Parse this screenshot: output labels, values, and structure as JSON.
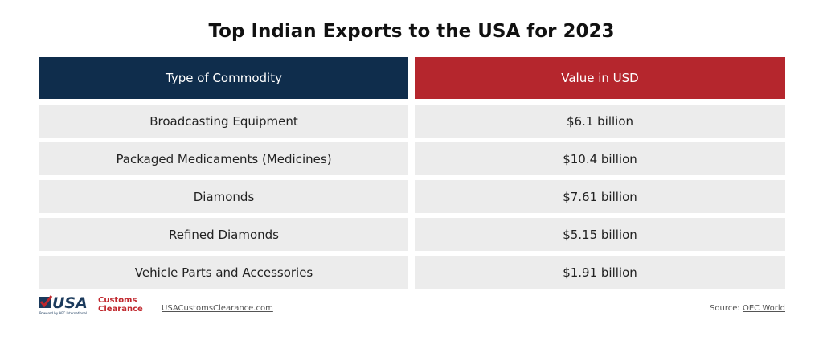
{
  "header": {
    "title": "Top Indian Exports to the USA for 2023"
  },
  "table": {
    "columns": [
      "Type of Commodity",
      "Value in USD"
    ],
    "rows": [
      [
        "Broadcasting Equipment",
        "$6.1 billion"
      ],
      [
        "Packaged Medicaments (Medicines)",
        "$10.4 billion"
      ],
      [
        "Diamonds",
        "$7.61 billion"
      ],
      [
        "Refined Diamonds",
        "$5.15 billion"
      ],
      [
        "Vehicle Parts and Accessories",
        "$1.91 billion"
      ]
    ]
  },
  "footer": {
    "logo": {
      "main": "USA",
      "line1": "Customs",
      "line2": "Clearance",
      "tagline": "Powered by AFC International"
    },
    "website": "USACustomsClearance.com",
    "source": {
      "label": "Source:",
      "link": "OEC World"
    }
  }
}
